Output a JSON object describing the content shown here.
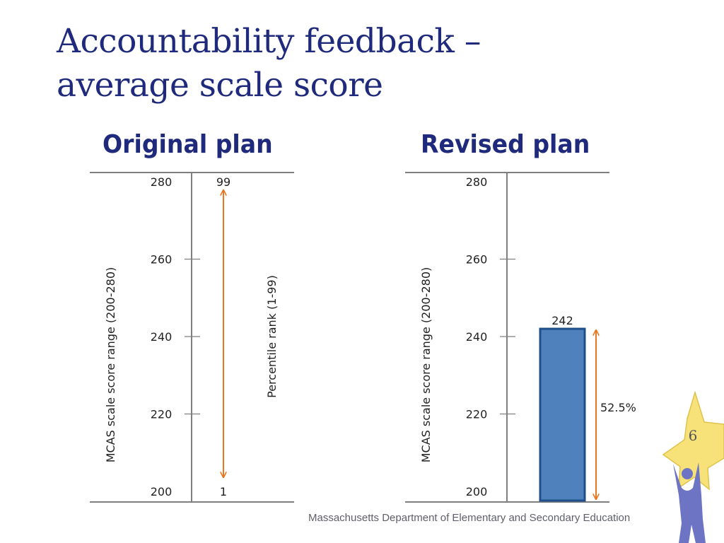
{
  "slide": {
    "title_line1": "Accountability feedback –",
    "title_line2": "average scale score",
    "footer": "Massachusetts Department of Elementary and Secondary Education",
    "page_number": "6"
  },
  "colors": {
    "title": "#1f2a7c",
    "axis": "#7f7f7f",
    "arrow": "#e87722",
    "bar_fill": "#4f81bd",
    "bar_stroke": "#1f4e8c",
    "star": "#f7e27a",
    "figure": "#6e74c4"
  },
  "chart_data": [
    {
      "type": "range",
      "heading": "Original plan",
      "ylabel": "MCAS scale score range (200-280)",
      "ylim": [
        200,
        280
      ],
      "yticks": [
        "280",
        "260",
        "240",
        "220",
        "200"
      ],
      "secondary_axis": {
        "label": "Percentile rank (1-99)",
        "ticks": [
          "99",
          "1"
        ],
        "range": [
          1,
          99
        ]
      }
    },
    {
      "type": "bar",
      "heading": "Revised plan",
      "ylabel": "MCAS scale score range (200-280)",
      "ylim": [
        200,
        280
      ],
      "yticks": [
        "280",
        "260",
        "240",
        "220",
        "200"
      ],
      "values": [
        242
      ],
      "value_label": "242",
      "annotation": "52.5%"
    }
  ]
}
